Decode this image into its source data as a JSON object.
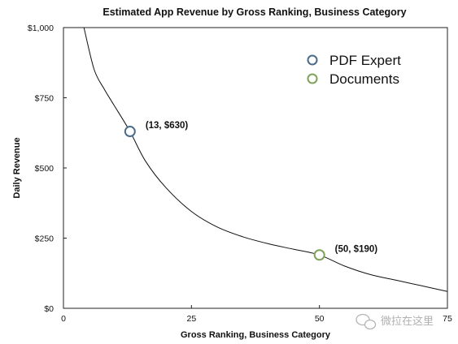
{
  "chart_data": {
    "type": "scatter",
    "title": "Estimated App Revenue by Gross Ranking, Business Category",
    "xlabel": "Gross Ranking, Business Category",
    "ylabel": "Daily Revenue",
    "xlim": [
      0,
      75
    ],
    "ylim": [
      0,
      1000
    ],
    "x_ticks": [
      "0",
      "25",
      "50",
      "75"
    ],
    "x_tick_values": [
      0,
      25,
      50,
      75
    ],
    "y_ticks": [
      "$0",
      "$250",
      "$500",
      "$750",
      "$1,000"
    ],
    "y_tick_values": [
      0,
      250,
      500,
      750,
      1000
    ],
    "grid": false,
    "legend_position": "top-right",
    "series": [
      {
        "name": "PDF Expert",
        "color": "#4a6b8a",
        "x": [
          13
        ],
        "y": [
          630
        ],
        "label": "(13, $630)"
      },
      {
        "name": "Documents",
        "color": "#7fa25a",
        "x": [
          50
        ],
        "y": [
          190
        ],
        "label": "(50, $190)"
      }
    ],
    "trendline": {
      "type": "power",
      "color": "#111111",
      "x": [
        4,
        6,
        8,
        10,
        13,
        16,
        20,
        25,
        30,
        35,
        40,
        45,
        50,
        55,
        60,
        65,
        70,
        75
      ],
      "y": [
        1000,
        850,
        780,
        720,
        630,
        525,
        430,
        345,
        290,
        255,
        230,
        210,
        190,
        150,
        120,
        100,
        80,
        60
      ]
    }
  },
  "watermark": {
    "icon": "wechat-icon",
    "text": "微拉在这里"
  }
}
